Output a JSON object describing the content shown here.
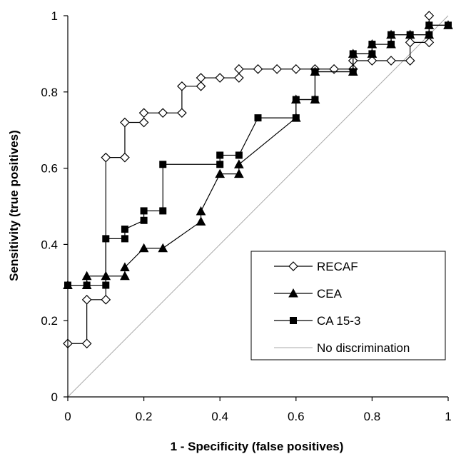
{
  "chart_data": {
    "type": "line",
    "title": "",
    "xlabel": "1 - Specificity (false positives)",
    "ylabel": "Sensitivity (true positives)",
    "xlim": [
      0,
      1
    ],
    "ylim": [
      0,
      1
    ],
    "x_ticks": [
      "0",
      "0.2",
      "0.4",
      "0.6",
      "0.8",
      "1"
    ],
    "y_ticks": [
      "0",
      "0.2",
      "0.4",
      "0.6",
      "0.8",
      "1"
    ],
    "grid": false,
    "legend_position": "bottom-right",
    "series": [
      {
        "name": "RECAF",
        "marker": "diamond-open",
        "color": "#000000",
        "points": [
          [
            0,
            0.14
          ],
          [
            0.05,
            0.14
          ],
          [
            0.05,
            0.255
          ],
          [
            0.1,
            0.255
          ],
          [
            0.1,
            0.628
          ],
          [
            0.15,
            0.628
          ],
          [
            0.15,
            0.72
          ],
          [
            0.2,
            0.72
          ],
          [
            0.2,
            0.745
          ],
          [
            0.25,
            0.745
          ],
          [
            0.3,
            0.745
          ],
          [
            0.3,
            0.815
          ],
          [
            0.35,
            0.815
          ],
          [
            0.35,
            0.837
          ],
          [
            0.4,
            0.837
          ],
          [
            0.45,
            0.837
          ],
          [
            0.45,
            0.86
          ],
          [
            0.5,
            0.86
          ],
          [
            0.55,
            0.86
          ],
          [
            0.6,
            0.86
          ],
          [
            0.65,
            0.86
          ],
          [
            0.7,
            0.86
          ],
          [
            0.75,
            0.86
          ],
          [
            0.75,
            0.882
          ],
          [
            0.8,
            0.882
          ],
          [
            0.85,
            0.882
          ],
          [
            0.9,
            0.882
          ],
          [
            0.9,
            0.93
          ],
          [
            0.95,
            0.93
          ],
          [
            0.95,
            1.0
          ]
        ]
      },
      {
        "name": "CEA",
        "marker": "triangle-filled",
        "color": "#000000",
        "points": [
          [
            0,
            0.293
          ],
          [
            0.05,
            0.293
          ],
          [
            0.05,
            0.317
          ],
          [
            0.1,
            0.317
          ],
          [
            0.15,
            0.317
          ],
          [
            0.15,
            0.34
          ],
          [
            0.2,
            0.39
          ],
          [
            0.25,
            0.39
          ],
          [
            0.35,
            0.46
          ],
          [
            0.35,
            0.487
          ],
          [
            0.4,
            0.585
          ],
          [
            0.45,
            0.585
          ],
          [
            0.45,
            0.61
          ],
          [
            0.6,
            0.732
          ],
          [
            0.6,
            0.78
          ],
          [
            0.65,
            0.78
          ],
          [
            0.65,
            0.853
          ],
          [
            0.75,
            0.853
          ],
          [
            0.75,
            0.9
          ],
          [
            0.8,
            0.9
          ],
          [
            0.8,
            0.925
          ],
          [
            0.85,
            0.925
          ],
          [
            0.85,
            0.95
          ],
          [
            0.9,
            0.95
          ],
          [
            0.95,
            0.95
          ],
          [
            0.95,
            0.975
          ],
          [
            1.0,
            0.975
          ]
        ]
      },
      {
        "name": "CA 15-3",
        "marker": "square-filled",
        "color": "#000000",
        "points": [
          [
            0,
            0.293
          ],
          [
            0.05,
            0.293
          ],
          [
            0.1,
            0.293
          ],
          [
            0.1,
            0.415
          ],
          [
            0.15,
            0.415
          ],
          [
            0.15,
            0.44
          ],
          [
            0.2,
            0.463
          ],
          [
            0.2,
            0.488
          ],
          [
            0.25,
            0.488
          ],
          [
            0.25,
            0.61
          ],
          [
            0.4,
            0.61
          ],
          [
            0.4,
            0.634
          ],
          [
            0.45,
            0.634
          ],
          [
            0.5,
            0.732
          ],
          [
            0.6,
            0.732
          ],
          [
            0.6,
            0.78
          ],
          [
            0.65,
            0.78
          ],
          [
            0.65,
            0.853
          ],
          [
            0.75,
            0.853
          ],
          [
            0.75,
            0.9
          ],
          [
            0.8,
            0.9
          ],
          [
            0.8,
            0.925
          ],
          [
            0.85,
            0.925
          ],
          [
            0.85,
            0.95
          ],
          [
            0.9,
            0.95
          ],
          [
            0.95,
            0.95
          ],
          [
            0.95,
            0.975
          ],
          [
            1.0,
            0.975
          ]
        ]
      },
      {
        "name": "No discrimination",
        "marker": "none",
        "color": "#a8a8a8",
        "points": [
          [
            0,
            0
          ],
          [
            1,
            1
          ]
        ]
      }
    ]
  }
}
